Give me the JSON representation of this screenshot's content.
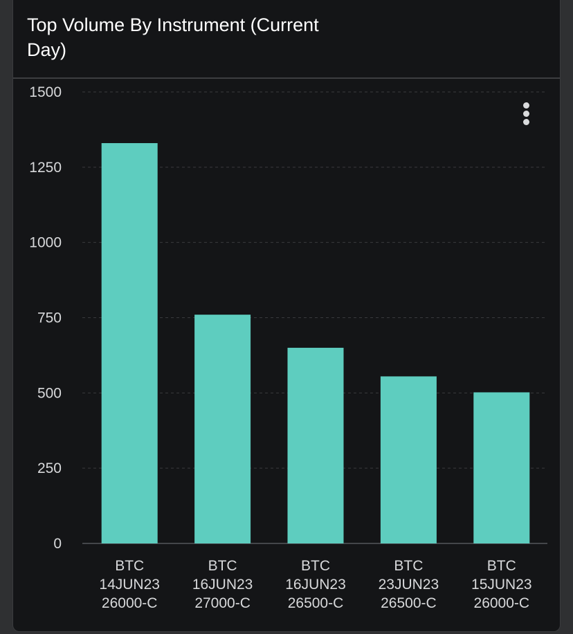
{
  "card": {
    "title": "Top Volume By Instrument (Current Day)",
    "menu_icon": "more-vertical-icon"
  },
  "colors": {
    "background": "#141517",
    "bar": "#5ecdbf",
    "grid": "#3a3b3e",
    "text": "#d8d9db"
  },
  "chart_data": {
    "type": "bar",
    "title": "Top Volume By Instrument (Current Day)",
    "xlabel": "",
    "ylabel": "",
    "ylim": [
      0,
      1500
    ],
    "yticks": [
      0,
      250,
      500,
      750,
      1000,
      1250,
      1500
    ],
    "categories": [
      [
        "BTC",
        "14JUN23",
        "26000-C"
      ],
      [
        "BTC",
        "16JUN23",
        "27000-C"
      ],
      [
        "BTC",
        "16JUN23",
        "26500-C"
      ],
      [
        "BTC",
        "23JUN23",
        "26500-C"
      ],
      [
        "BTC",
        "15JUN23",
        "26000-C"
      ]
    ],
    "values": [
      1330,
      760,
      650,
      555,
      502
    ],
    "grid": true,
    "legend": "none"
  }
}
